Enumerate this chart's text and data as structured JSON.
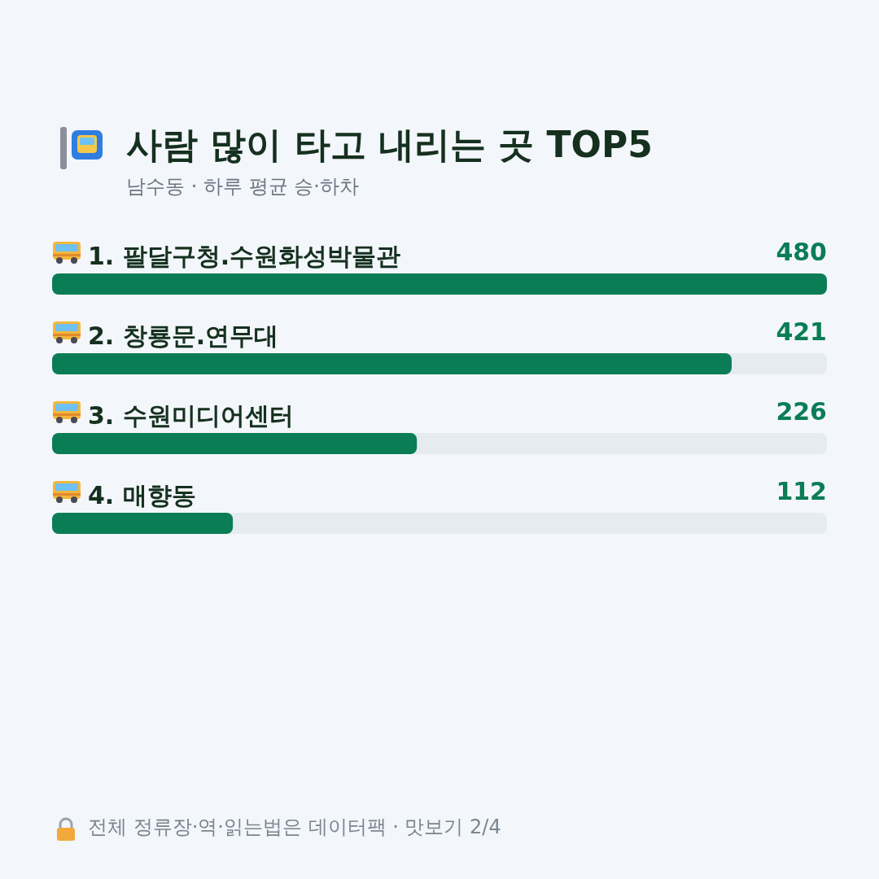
{
  "chart_data": {
    "type": "bar",
    "orientation": "horizontal",
    "title": "사람 많이 타고 내리는 곳 TOP5",
    "subtitle": "남수동 · 하루 평균 승·하차",
    "categories": [
      "1. 팔달구청.수원화성박물관",
      "2. 창룡문.연무대",
      "3. 수원미디어센터",
      "4. 매향동"
    ],
    "values": [
      480,
      421,
      226,
      112
    ],
    "color": "#0a7d56",
    "xlim": [
      0,
      480
    ],
    "data_labels": true,
    "annotations": [
      "전체 정류장·역·읽는법은 데이터팩 · 맛보기 2/4"
    ]
  }
}
